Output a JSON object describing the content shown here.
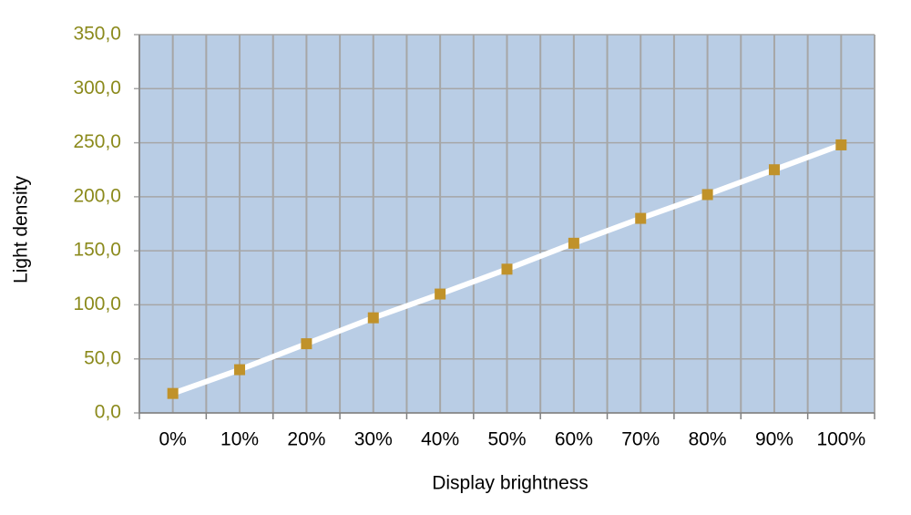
{
  "chart_data": {
    "type": "line",
    "x_label": "Display brightness",
    "y_label": "Light density",
    "categories": [
      "0%",
      "10%",
      "20%",
      "30%",
      "40%",
      "50%",
      "60%",
      "70%",
      "80%",
      "90%",
      "100%"
    ],
    "series": [
      {
        "color": "#c0922a",
        "line_color": "#ffffff",
        "values": [
          18,
          40,
          64,
          88,
          110,
          133,
          157,
          180,
          202,
          225,
          248
        ]
      }
    ],
    "ylim": [
      0,
      350
    ],
    "yticks": [
      {
        "value": 0,
        "label": "0,0"
      },
      {
        "value": 50,
        "label": "50,0"
      },
      {
        "value": 100,
        "label": "100,0"
      },
      {
        "value": 150,
        "label": "150,0"
      },
      {
        "value": 200,
        "label": "200,0"
      },
      {
        "value": 250,
        "label": "250,0"
      },
      {
        "value": 300,
        "label": "300,0"
      },
      {
        "value": 350,
        "label": "350,0"
      }
    ],
    "grid": true
  }
}
